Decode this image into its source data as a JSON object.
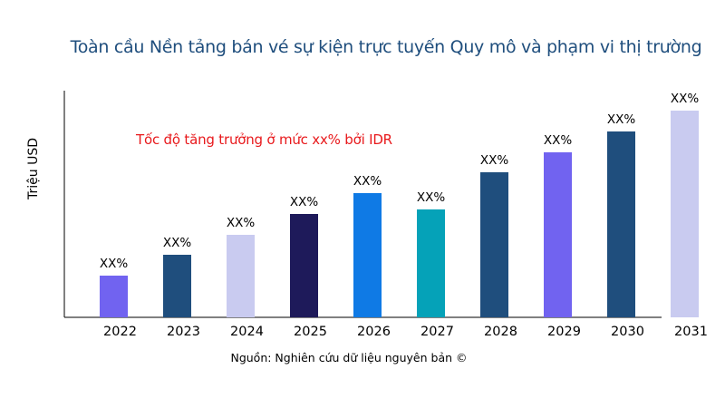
{
  "chart_data": {
    "type": "bar",
    "title": "Toàn cầu Nền tảng bán vé sự kiện trực tuyến Quy mô và phạm vi thị trường",
    "xlabel": "",
    "ylabel": "Triệu USD",
    "annotation": "Tốc độ tăng trưởng ở mức xx% bởi IDR",
    "source": "Nguồn: Nghiên cứu dữ liệu nguyên bản ©",
    "categories": [
      "2022",
      "2023",
      "2024",
      "2025",
      "2026",
      "2027",
      "2028",
      "2029",
      "2030",
      "2031"
    ],
    "values": [
      46,
      69,
      91,
      114,
      137,
      119,
      160,
      182,
      205,
      228
    ],
    "data_labels": [
      "XX%",
      "XX%",
      "XX%",
      "XX%",
      "XX%",
      "XX%",
      "XX%",
      "XX%",
      "XX%",
      "XX%"
    ],
    "colors": [
      "#7163f0",
      "#1f4e7d",
      "#c9cbf0",
      "#1e1a5a",
      "#0f7ae5",
      "#05a2b8",
      "#1f4e7d",
      "#7163f0",
      "#1f4e7d",
      "#c9cbf0"
    ],
    "ylim": [
      0,
      250
    ],
    "grid": false,
    "legend": "none"
  }
}
